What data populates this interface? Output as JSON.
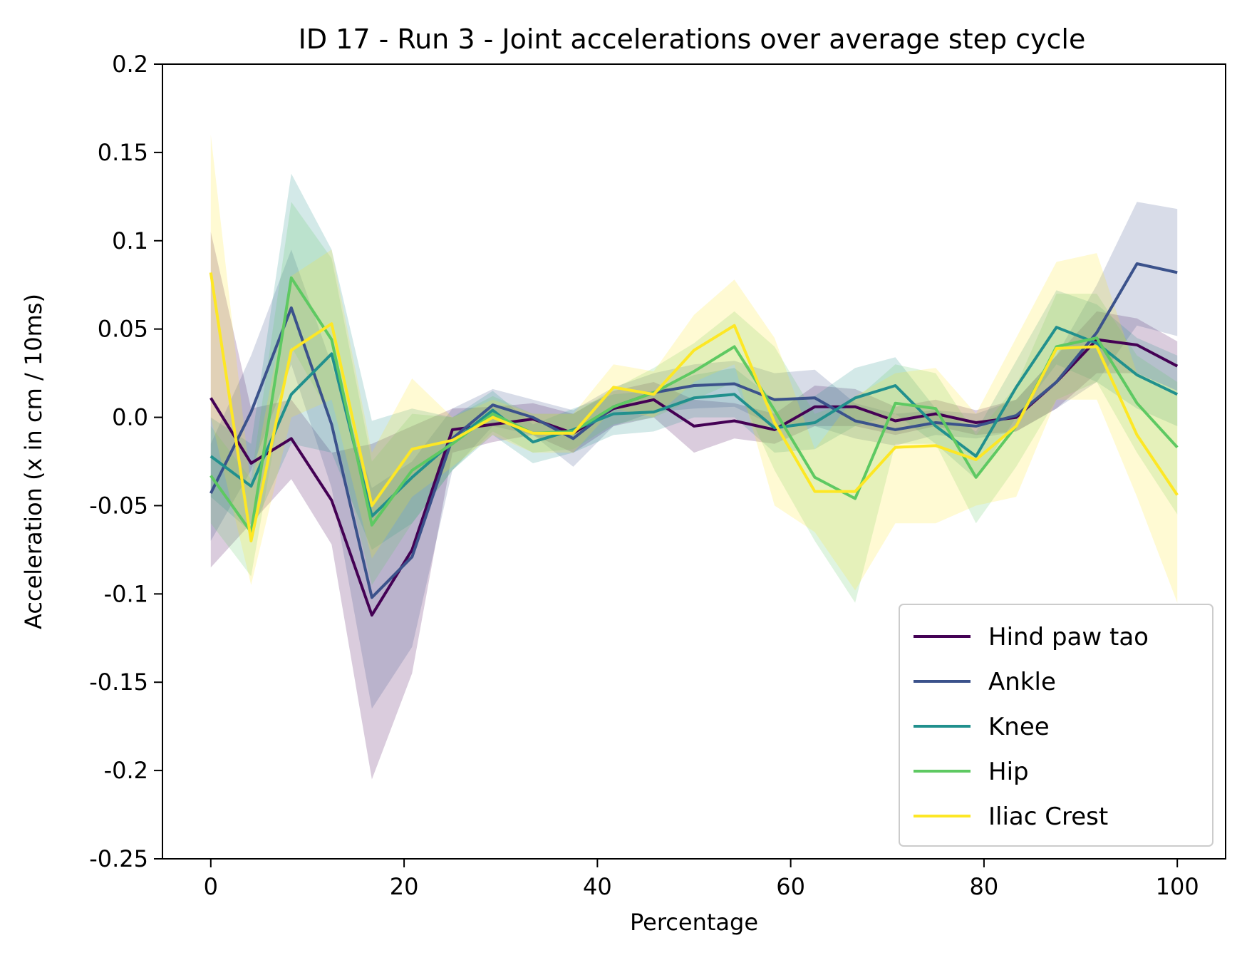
{
  "chart_data": {
    "type": "line",
    "title": "ID 17 - Run 3 - Joint accelerations over average step cycle",
    "xlabel": "Percentage",
    "ylabel": "Acceleration (x in cm / 10ms)",
    "xlim": [
      -5,
      105
    ],
    "ylim": [
      -0.25,
      0.2
    ],
    "xticks": [
      "0",
      "20",
      "40",
      "60",
      "80",
      "100"
    ],
    "yticks": [
      "-0.25",
      "-0.2",
      "-0.15",
      "-0.1",
      "-0.05",
      "0.0",
      "0.05",
      "0.1",
      "0.15",
      "0.2"
    ],
    "grid": false,
    "legend_position": "lower-right",
    "x": [
      0,
      4.17,
      8.33,
      12.5,
      16.67,
      20.83,
      25,
      29.17,
      33.33,
      37.5,
      41.67,
      45.83,
      50,
      54.17,
      58.33,
      62.5,
      66.67,
      70.83,
      75,
      79.17,
      83.33,
      87.5,
      91.67,
      95.83,
      100
    ],
    "series": [
      {
        "name": "Hind paw tao",
        "color": "#440154",
        "values": [
          0.011,
          -0.026,
          -0.012,
          -0.047,
          -0.112,
          -0.075,
          -0.007,
          -0.004,
          -0.001,
          -0.009,
          0.005,
          0.01,
          -0.005,
          -0.002,
          -0.007,
          0.006,
          0.006,
          -0.002,
          0.002,
          -0.003,
          0.0,
          0.02,
          0.044,
          0.041,
          0.029
        ],
        "lower": [
          -0.085,
          -0.06,
          -0.035,
          -0.072,
          -0.205,
          -0.145,
          -0.02,
          -0.014,
          -0.01,
          -0.02,
          -0.005,
          0.0,
          -0.02,
          -0.012,
          -0.015,
          -0.005,
          -0.005,
          -0.01,
          -0.005,
          -0.01,
          -0.008,
          0.005,
          0.025,
          0.025,
          0.015
        ],
        "upper": [
          0.105,
          0.005,
          0.01,
          -0.02,
          -0.015,
          -0.005,
          0.005,
          0.006,
          0.008,
          0.002,
          0.015,
          0.02,
          0.01,
          0.008,
          0.002,
          0.018,
          0.016,
          0.006,
          0.01,
          0.004,
          0.01,
          0.035,
          0.06,
          0.056,
          0.043
        ]
      },
      {
        "name": "Ankle",
        "color": "#3b528b",
        "values": [
          -0.043,
          0.003,
          0.062,
          -0.004,
          -0.102,
          -0.079,
          -0.012,
          0.007,
          0.0,
          -0.012,
          0.006,
          0.014,
          0.018,
          0.019,
          0.01,
          0.011,
          -0.002,
          -0.007,
          -0.003,
          -0.005,
          0.001,
          0.02,
          0.048,
          0.087,
          0.082
        ],
        "lower": [
          -0.07,
          -0.03,
          0.03,
          -0.04,
          -0.165,
          -0.13,
          -0.03,
          -0.005,
          -0.01,
          -0.028,
          -0.005,
          0.003,
          0.005,
          0.006,
          -0.005,
          -0.005,
          -0.012,
          -0.016,
          -0.01,
          -0.012,
          -0.008,
          0.005,
          0.02,
          0.052,
          0.046
        ],
        "upper": [
          -0.015,
          0.035,
          0.095,
          0.03,
          -0.04,
          -0.025,
          0.005,
          0.016,
          0.01,
          0.004,
          0.017,
          0.025,
          0.03,
          0.032,
          0.025,
          0.027,
          0.008,
          0.002,
          0.004,
          0.002,
          0.01,
          0.035,
          0.075,
          0.122,
          0.118
        ]
      },
      {
        "name": "Knee",
        "color": "#21908d",
        "values": [
          -0.022,
          -0.039,
          0.013,
          0.036,
          -0.056,
          -0.034,
          -0.014,
          0.004,
          -0.014,
          -0.007,
          0.002,
          0.003,
          0.011,
          0.013,
          -0.006,
          -0.003,
          0.011,
          0.018,
          -0.005,
          -0.022,
          0.017,
          0.051,
          0.042,
          0.024,
          0.013
        ],
        "lower": [
          -0.045,
          -0.065,
          -0.015,
          -0.02,
          -0.075,
          -0.06,
          -0.03,
          -0.01,
          -0.026,
          -0.02,
          -0.01,
          -0.008,
          0.0,
          0.0,
          -0.02,
          -0.018,
          -0.005,
          0.002,
          -0.015,
          -0.035,
          0.0,
          0.03,
          0.02,
          0.005,
          -0.005
        ],
        "upper": [
          0.0,
          -0.015,
          0.138,
          0.095,
          -0.002,
          0.005,
          0.0,
          0.015,
          -0.004,
          0.005,
          0.013,
          0.015,
          0.024,
          0.028,
          0.01,
          0.012,
          0.028,
          0.034,
          0.005,
          -0.008,
          0.032,
          0.072,
          0.064,
          0.045,
          0.035
        ]
      },
      {
        "name": "Hip",
        "color": "#5ec962",
        "values": [
          -0.033,
          -0.065,
          0.079,
          0.044,
          -0.061,
          -0.03,
          -0.015,
          0.002,
          -0.009,
          -0.008,
          0.006,
          0.014,
          0.026,
          0.04,
          0.004,
          -0.034,
          -0.046,
          0.008,
          0.005,
          -0.034,
          -0.005,
          0.04,
          0.045,
          0.008,
          -0.017
        ],
        "lower": [
          -0.06,
          -0.09,
          0.04,
          0.0,
          -0.095,
          -0.06,
          -0.03,
          -0.008,
          -0.02,
          -0.018,
          -0.004,
          0.0,
          0.01,
          0.02,
          -0.03,
          -0.07,
          -0.105,
          -0.015,
          -0.015,
          -0.06,
          -0.028,
          0.01,
          0.02,
          -0.02,
          -0.055
        ],
        "upper": [
          -0.005,
          -0.035,
          0.122,
          0.09,
          -0.025,
          0.002,
          0.0,
          0.012,
          0.002,
          0.002,
          0.016,
          0.028,
          0.042,
          0.06,
          0.04,
          0.002,
          0.01,
          0.03,
          0.025,
          -0.01,
          0.018,
          0.07,
          0.07,
          0.035,
          0.02
        ]
      },
      {
        "name": "Iliac Crest",
        "color": "#fde725",
        "values": [
          0.082,
          -0.07,
          0.038,
          0.053,
          -0.05,
          -0.018,
          -0.013,
          0.0,
          -0.009,
          -0.009,
          0.017,
          0.013,
          0.038,
          0.052,
          -0.003,
          -0.042,
          -0.042,
          -0.017,
          -0.016,
          -0.024,
          -0.005,
          0.039,
          0.04,
          -0.01,
          -0.044
        ],
        "lower": [
          0.0,
          -0.095,
          0.0,
          0.01,
          -0.08,
          -0.045,
          -0.028,
          -0.01,
          -0.02,
          -0.02,
          0.005,
          0.0,
          0.02,
          0.03,
          -0.05,
          -0.065,
          -0.098,
          -0.06,
          -0.06,
          -0.05,
          -0.045,
          0.01,
          0.01,
          -0.045,
          -0.105
        ],
        "upper": [
          0.16,
          -0.04,
          0.08,
          0.095,
          -0.02,
          0.022,
          0.0,
          0.01,
          0.002,
          0.002,
          0.03,
          0.026,
          0.058,
          0.078,
          0.045,
          -0.018,
          0.012,
          0.025,
          0.028,
          0.002,
          0.045,
          0.088,
          0.093,
          0.025,
          0.015
        ]
      }
    ]
  }
}
